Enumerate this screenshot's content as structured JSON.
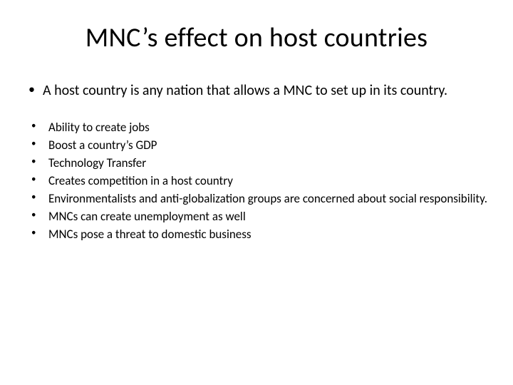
{
  "title": "MNC’s effect on host countries",
  "intro": "A host country is any nation that allows a MNC to set up in its country.",
  "bullets": [
    "Ability to create jobs",
    "Boost a country’s GDP",
    "Technology Transfer",
    "Creates competition in a host country",
    "Environmentalists and anti-globalization groups are concerned about social responsibility.",
    "MNCs can create unemployment as well",
    "MNCs pose a threat to domestic business"
  ],
  "colors": {
    "background": "#ffffff",
    "text": "#000000"
  },
  "typography": {
    "title_fontsize": 38,
    "intro_fontsize": 20,
    "bullet_fontsize": 17,
    "font_family": "Calibri"
  }
}
